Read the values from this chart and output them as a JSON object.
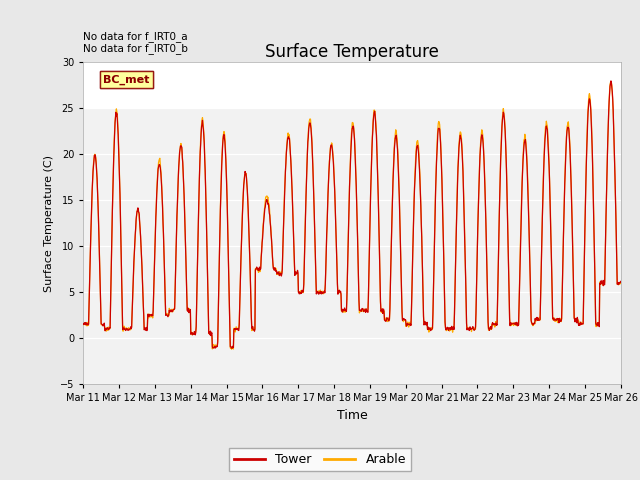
{
  "title": "Surface Temperature",
  "ylabel": "Surface Temperature (C)",
  "xlabel": "Time",
  "ylim": [
    -5,
    30
  ],
  "yticks": [
    -5,
    0,
    5,
    10,
    15,
    20,
    25,
    30
  ],
  "tower_color": "#cc0000",
  "arable_color": "#ffaa00",
  "fig_facecolor": "#e8e8e8",
  "plot_facecolor": "#f2f2f2",
  "plot_facecolor_top": "#ffffff",
  "legend_items": [
    "Tower",
    "Arable"
  ],
  "no_data_text1": "No data for f_IRT0_a",
  "no_data_text2": "No data for f_IRT0_b",
  "bc_met_label": "BC_met",
  "xtick_labels": [
    "Mar 11",
    "Mar 12",
    "Mar 13",
    "Mar 14",
    "Mar 15",
    "Mar 16",
    "Mar 17",
    "Mar 18",
    "Mar 19",
    "Mar 20",
    "Mar 21",
    "Mar 22",
    "Mar 23",
    "Mar 24",
    "Mar 25",
    "Mar 26"
  ],
  "day_peaks_t": [
    20.0,
    24.5,
    14.0,
    19.0,
    21.0,
    23.5,
    22.0,
    18.0,
    15.0,
    22.0,
    23.5,
    21.0,
    23.0,
    24.5,
    22.0,
    21.0,
    23.0,
    22.0,
    22.0,
    24.5,
    21.5,
    23.0,
    23.0,
    26.0,
    28.0
  ],
  "day_peaks_a": [
    20.0,
    24.8,
    14.0,
    19.5,
    21.0,
    23.8,
    22.5,
    18.0,
    15.5,
    22.2,
    23.8,
    21.2,
    23.5,
    24.8,
    22.5,
    21.5,
    23.5,
    22.5,
    22.5,
    24.8,
    22.0,
    23.5,
    23.5,
    26.5,
    28.0
  ],
  "night_base": [
    1.5,
    1.0,
    1.0,
    2.5,
    3.0,
    0.5,
    -1.0,
    1.0,
    7.5,
    7.0,
    5.0,
    5.0,
    3.0,
    3.0,
    2.0,
    1.5,
    1.0,
    1.0,
    1.0,
    1.5,
    1.5,
    2.0,
    2.0,
    1.5,
    6.0
  ]
}
